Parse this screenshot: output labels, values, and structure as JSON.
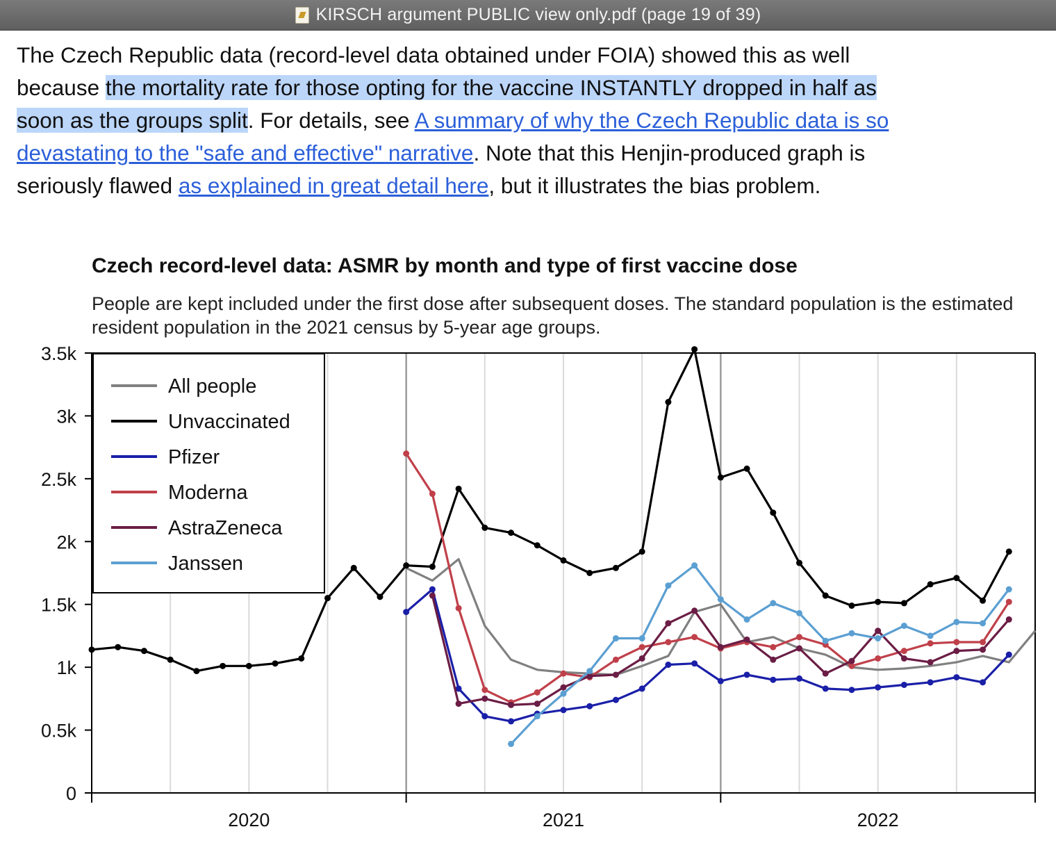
{
  "window": {
    "title": "KIRSCH argument PUBLIC view only.pdf (page 19 of 39)",
    "icon": "pdf-document-icon"
  },
  "paragraph": {
    "t1": "The Czech Republic data (record-level data obtained under FOIA) showed this as well because ",
    "highlight": "the mortality rate for those opting for the vaccine INSTANTLY dropped in half as soon as the groups split",
    "t2": ". For details, see ",
    "link1": "A summary of why the Czech Republic data is so devastating to the \"safe and effective\" narrative",
    "t3": ". Note that this Henjin-produced graph is seriously flawed ",
    "link2": "as explained in great detail here",
    "t4": ", but it illustrates the bias problem.",
    "highlight_color": "#bcd6fa",
    "link_color": "#2b5fd9"
  },
  "chart_data": {
    "type": "line",
    "title": "Czech record-level data: ASMR by month and type of first vaccine dose",
    "subtitle": "People are kept included under the first dose after subsequent doses. The standard population is the estimated resident population in the 2021 census by 5-year age groups.",
    "x_start": "2020-01",
    "x_end": "2022-12",
    "x_tick_labels": [
      "2020",
      "2021",
      "2022"
    ],
    "y_ticks": [
      0,
      500,
      1000,
      1500,
      2000,
      2500,
      3000,
      3500
    ],
    "y_tick_labels": [
      "0",
      "0.5k",
      "1k",
      "1.5k",
      "2k",
      "2.5k",
      "3k",
      "3.5k"
    ],
    "ylim": [
      0,
      3500
    ],
    "grid": "vertical",
    "legend_position": "top-left",
    "series": [
      {
        "name": "All people",
        "color": "#808080",
        "markers": false,
        "points": [
          [
            "2021-01",
            1790
          ],
          [
            "2021-02",
            1690
          ],
          [
            "2021-03",
            1860
          ],
          [
            "2021-04",
            1330
          ],
          [
            "2021-05",
            1060
          ],
          [
            "2021-06",
            980
          ],
          [
            "2021-07",
            960
          ],
          [
            "2021-08",
            950
          ],
          [
            "2021-09",
            940
          ],
          [
            "2021-10",
            1010
          ],
          [
            "2021-11",
            1090
          ],
          [
            "2021-12",
            1440
          ],
          [
            "2022-01",
            1500
          ],
          [
            "2022-02",
            1200
          ],
          [
            "2022-03",
            1240
          ],
          [
            "2022-04",
            1150
          ],
          [
            "2022-05",
            1100
          ],
          [
            "2022-06",
            1000
          ],
          [
            "2022-07",
            980
          ],
          [
            "2022-08",
            990
          ],
          [
            "2022-09",
            1010
          ],
          [
            "2022-10",
            1040
          ],
          [
            "2022-11",
            1090
          ],
          [
            "2022-12",
            1040
          ],
          [
            "2023-01",
            1290
          ]
        ]
      },
      {
        "name": "Unvaccinated",
        "color": "#000000",
        "markers": true,
        "points": [
          [
            "2020-01",
            1140
          ],
          [
            "2020-02",
            1160
          ],
          [
            "2020-03",
            1130
          ],
          [
            "2020-04",
            1060
          ],
          [
            "2020-05",
            970
          ],
          [
            "2020-06",
            1010
          ],
          [
            "2020-07",
            1010
          ],
          [
            "2020-08",
            1030
          ],
          [
            "2020-09",
            1070
          ],
          [
            "2020-10",
            1550
          ],
          [
            "2020-11",
            1790
          ],
          [
            "2020-12",
            1560
          ],
          [
            "2021-01",
            1810
          ],
          [
            "2021-02",
            1800
          ],
          [
            "2021-03",
            2420
          ],
          [
            "2021-04",
            2110
          ],
          [
            "2021-05",
            2070
          ],
          [
            "2021-06",
            1970
          ],
          [
            "2021-07",
            1850
          ],
          [
            "2021-08",
            1750
          ],
          [
            "2021-09",
            1790
          ],
          [
            "2021-10",
            1920
          ],
          [
            "2021-11",
            3110
          ],
          [
            "2021-12",
            3530
          ],
          [
            "2022-01",
            2510
          ],
          [
            "2022-02",
            2580
          ],
          [
            "2022-03",
            2230
          ],
          [
            "2022-04",
            1830
          ],
          [
            "2022-05",
            1570
          ],
          [
            "2022-06",
            1490
          ],
          [
            "2022-07",
            1520
          ],
          [
            "2022-08",
            1510
          ],
          [
            "2022-09",
            1660
          ],
          [
            "2022-10",
            1710
          ],
          [
            "2022-11",
            1530
          ],
          [
            "2022-12",
            1920
          ]
        ]
      },
      {
        "name": "Pfizer",
        "color": "#1a1fa8",
        "markers": true,
        "points": [
          [
            "2021-01",
            1440
          ],
          [
            "2021-02",
            1620
          ],
          [
            "2021-03",
            830
          ],
          [
            "2021-04",
            610
          ],
          [
            "2021-05",
            570
          ],
          [
            "2021-06",
            630
          ],
          [
            "2021-07",
            660
          ],
          [
            "2021-08",
            690
          ],
          [
            "2021-09",
            740
          ],
          [
            "2021-10",
            830
          ],
          [
            "2021-11",
            1020
          ],
          [
            "2021-12",
            1030
          ],
          [
            "2022-01",
            890
          ],
          [
            "2022-02",
            940
          ],
          [
            "2022-03",
            900
          ],
          [
            "2022-04",
            910
          ],
          [
            "2022-05",
            830
          ],
          [
            "2022-06",
            820
          ],
          [
            "2022-07",
            840
          ],
          [
            "2022-08",
            860
          ],
          [
            "2022-09",
            880
          ],
          [
            "2022-10",
            920
          ],
          [
            "2022-11",
            880
          ],
          [
            "2022-12",
            1100
          ]
        ]
      },
      {
        "name": "Moderna",
        "color": "#c0404a",
        "markers": true,
        "points": [
          [
            "2021-01",
            2700
          ],
          [
            "2021-02",
            2380
          ],
          [
            "2021-03",
            1470
          ],
          [
            "2021-04",
            820
          ],
          [
            "2021-05",
            720
          ],
          [
            "2021-06",
            800
          ],
          [
            "2021-07",
            950
          ],
          [
            "2021-08",
            920
          ],
          [
            "2021-09",
            1060
          ],
          [
            "2021-10",
            1160
          ],
          [
            "2021-11",
            1200
          ],
          [
            "2021-12",
            1240
          ],
          [
            "2022-01",
            1150
          ],
          [
            "2022-02",
            1200
          ],
          [
            "2022-03",
            1160
          ],
          [
            "2022-04",
            1240
          ],
          [
            "2022-05",
            1180
          ],
          [
            "2022-06",
            1010
          ],
          [
            "2022-07",
            1070
          ],
          [
            "2022-08",
            1130
          ],
          [
            "2022-09",
            1190
          ],
          [
            "2022-10",
            1200
          ],
          [
            "2022-11",
            1200
          ],
          [
            "2022-12",
            1520
          ]
        ]
      },
      {
        "name": "AstraZeneca",
        "color": "#6b1d45",
        "markers": true,
        "points": [
          [
            "2021-02",
            1570
          ],
          [
            "2021-03",
            710
          ],
          [
            "2021-04",
            750
          ],
          [
            "2021-05",
            700
          ],
          [
            "2021-06",
            710
          ],
          [
            "2021-07",
            840
          ],
          [
            "2021-08",
            930
          ],
          [
            "2021-09",
            940
          ],
          [
            "2021-10",
            1070
          ],
          [
            "2021-11",
            1350
          ],
          [
            "2021-12",
            1450
          ],
          [
            "2022-01",
            1160
          ],
          [
            "2022-02",
            1220
          ],
          [
            "2022-03",
            1060
          ],
          [
            "2022-04",
            1150
          ],
          [
            "2022-05",
            950
          ],
          [
            "2022-06",
            1050
          ],
          [
            "2022-07",
            1290
          ],
          [
            "2022-08",
            1070
          ],
          [
            "2022-09",
            1040
          ],
          [
            "2022-10",
            1130
          ],
          [
            "2022-11",
            1140
          ],
          [
            "2022-12",
            1380
          ]
        ]
      },
      {
        "name": "Janssen",
        "color": "#5b9fd2",
        "markers": true,
        "points": [
          [
            "2021-05",
            390
          ],
          [
            "2021-06",
            610
          ],
          [
            "2021-07",
            790
          ],
          [
            "2021-08",
            970
          ],
          [
            "2021-09",
            1230
          ],
          [
            "2021-10",
            1230
          ],
          [
            "2021-11",
            1650
          ],
          [
            "2021-12",
            1810
          ],
          [
            "2022-01",
            1540
          ],
          [
            "2022-02",
            1380
          ],
          [
            "2022-03",
            1510
          ],
          [
            "2022-04",
            1430
          ],
          [
            "2022-05",
            1210
          ],
          [
            "2022-06",
            1270
          ],
          [
            "2022-07",
            1230
          ],
          [
            "2022-08",
            1330
          ],
          [
            "2022-09",
            1250
          ],
          [
            "2022-10",
            1360
          ],
          [
            "2022-11",
            1350
          ],
          [
            "2022-12",
            1620
          ]
        ]
      }
    ]
  }
}
